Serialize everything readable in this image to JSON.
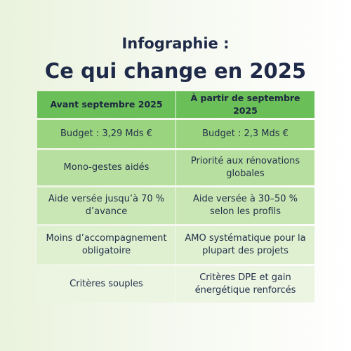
{
  "header": {
    "subtitle": "Infographie :",
    "title": "Ce qui change en 2025"
  },
  "table": {
    "columns": [
      "Avant septembre 2025",
      "À partir de septembre 2025"
    ],
    "rows": [
      [
        "Budget : 3,29 Mds €",
        "Budget : 2,3 Mds €"
      ],
      [
        "Mono-gestes aidés",
        "Priorité aux rénovations globales"
      ],
      [
        "Aide versée jusqu’à 70 % d’avance",
        "Aide versée à 30–50 % selon les profils"
      ],
      [
        "Moins d’accompagnement obligatoire",
        "AMO systématique pour la plupart des projets"
      ],
      [
        "Critères souples",
        "Critères DPE et gain énergétique renforcés"
      ]
    ]
  }
}
